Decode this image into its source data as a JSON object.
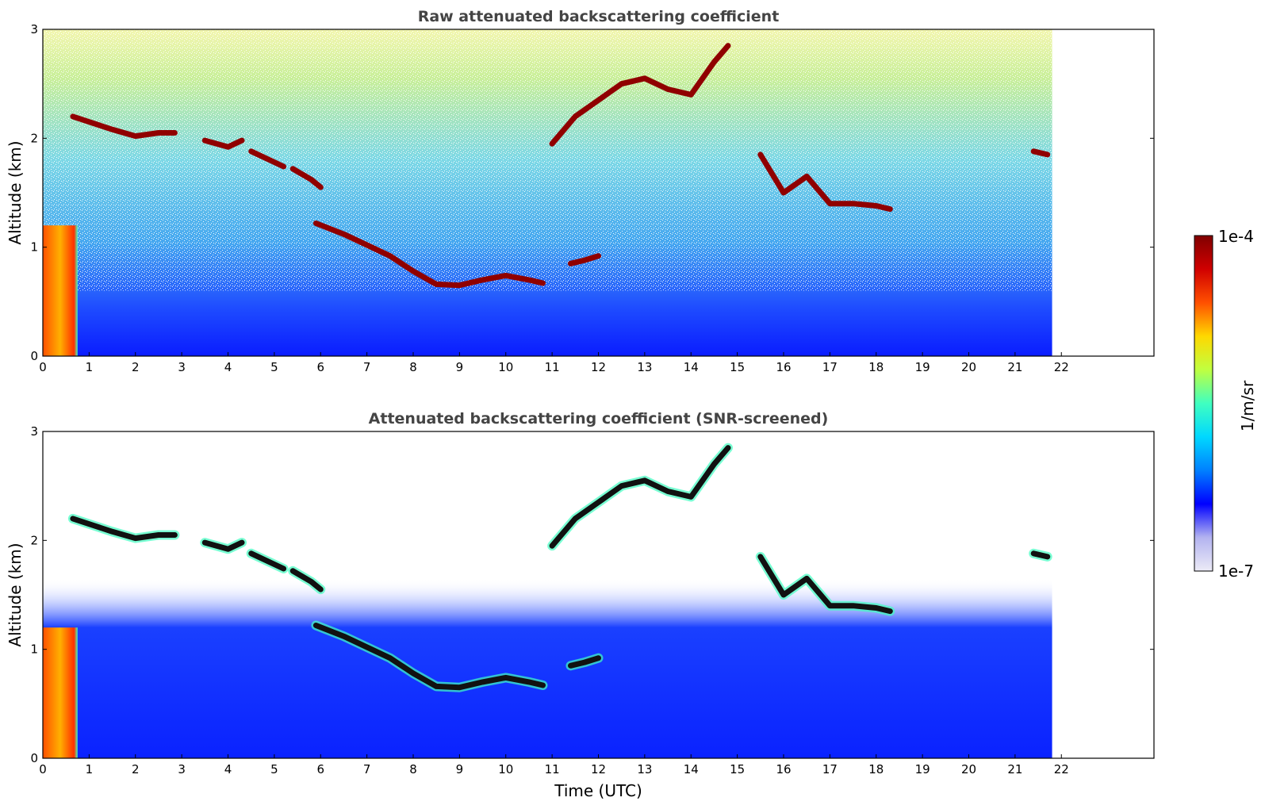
{
  "chart_data": [
    {
      "type": "heatmap",
      "title": "Raw attenuated backscattering coefficient",
      "xlabel": "",
      "ylabel": "Altitude (km)",
      "xlim": [
        0,
        24
      ],
      "ylim": [
        0,
        3
      ],
      "x_ticks": [
        0,
        1,
        2,
        3,
        4,
        5,
        6,
        7,
        8,
        9,
        10,
        11,
        12,
        13,
        14,
        15,
        16,
        17,
        18,
        19,
        20,
        21,
        22
      ],
      "y_ticks": [
        0,
        1,
        2,
        3
      ],
      "data_end_time": 21.8,
      "cloud_layers": [
        {
          "t": [
            0.65,
            1,
            1.5,
            2,
            2.5,
            2.85
          ],
          "alt": [
            2.2,
            2.15,
            2.08,
            2.02,
            2.05,
            2.05
          ]
        },
        {
          "t": [
            3.5,
            4,
            4.3
          ],
          "alt": [
            1.98,
            1.92,
            1.98
          ]
        },
        {
          "t": [
            4.5,
            5,
            5.2
          ],
          "alt": [
            1.88,
            1.78,
            1.74
          ]
        },
        {
          "t": [
            5.4,
            5.8,
            6.0
          ],
          "alt": [
            1.72,
            1.62,
            1.55
          ]
        },
        {
          "t": [
            5.9,
            6.5,
            7,
            7.5,
            8,
            8.5,
            9,
            9.5,
            10,
            10.5,
            10.8
          ],
          "alt": [
            1.22,
            1.12,
            1.02,
            0.92,
            0.78,
            0.66,
            0.65,
            0.7,
            0.74,
            0.7,
            0.67
          ]
        },
        {
          "t": [
            11,
            11.5,
            12,
            12.5,
            13,
            13.5,
            14,
            14.5,
            14.8
          ],
          "alt": [
            1.95,
            2.2,
            2.35,
            2.5,
            2.55,
            2.45,
            2.4,
            2.7,
            2.85
          ]
        },
        {
          "t": [
            15.5,
            16,
            16.5,
            17,
            17.5,
            18,
            18.3
          ],
          "alt": [
            1.85,
            1.5,
            1.65,
            1.4,
            1.4,
            1.38,
            1.35
          ]
        },
        {
          "t": [
            11.4,
            11.7,
            12
          ],
          "alt": [
            0.85,
            0.88,
            0.92
          ]
        },
        {
          "t": [
            21.4,
            21.7
          ],
          "alt": [
            1.88,
            1.85
          ]
        }
      ],
      "surface_aerosol": {
        "t_start": 0,
        "t_end": 0.75,
        "top_alt": 1.2
      }
    },
    {
      "type": "heatmap",
      "title": "Attenuated backscattering coefficient (SNR-screened)",
      "xlabel": "Time (UTC)",
      "ylabel": "Altitude (km)",
      "xlim": [
        0,
        24
      ],
      "ylim": [
        0,
        3
      ],
      "x_ticks": [
        0,
        1,
        2,
        3,
        4,
        5,
        6,
        7,
        8,
        9,
        10,
        11,
        12,
        13,
        14,
        15,
        16,
        17,
        18,
        19,
        20,
        21,
        22
      ],
      "y_ticks": [
        0,
        1,
        2,
        3
      ],
      "data_end_time": 21.8,
      "cloud_layers": [
        {
          "t": [
            0.65,
            1,
            1.5,
            2,
            2.5,
            2.85
          ],
          "alt": [
            2.2,
            2.15,
            2.08,
            2.02,
            2.05,
            2.05
          ]
        },
        {
          "t": [
            3.5,
            4,
            4.3
          ],
          "alt": [
            1.98,
            1.92,
            1.98
          ]
        },
        {
          "t": [
            4.5,
            5,
            5.2
          ],
          "alt": [
            1.88,
            1.78,
            1.74
          ]
        },
        {
          "t": [
            5.4,
            5.8,
            6.0
          ],
          "alt": [
            1.72,
            1.62,
            1.55
          ]
        },
        {
          "t": [
            5.9,
            6.5,
            7,
            7.5,
            8,
            8.5,
            9,
            9.5,
            10,
            10.5,
            10.8
          ],
          "alt": [
            1.22,
            1.12,
            1.02,
            0.92,
            0.78,
            0.66,
            0.65,
            0.7,
            0.74,
            0.7,
            0.67
          ]
        },
        {
          "t": [
            11,
            11.5,
            12,
            12.5,
            13,
            13.5,
            14,
            14.5,
            14.8
          ],
          "alt": [
            1.95,
            2.2,
            2.35,
            2.5,
            2.55,
            2.45,
            2.4,
            2.7,
            2.85
          ]
        },
        {
          "t": [
            15.5,
            16,
            16.5,
            17,
            17.5,
            18,
            18.3
          ],
          "alt": [
            1.85,
            1.5,
            1.65,
            1.4,
            1.4,
            1.38,
            1.35
          ]
        },
        {
          "t": [
            11.4,
            11.7,
            12
          ],
          "alt": [
            0.85,
            0.88,
            0.92
          ]
        },
        {
          "t": [
            21.4,
            21.7
          ],
          "alt": [
            1.88,
            1.85
          ]
        }
      ],
      "surface_aerosol": {
        "t_start": 0,
        "t_end": 0.75,
        "top_alt": 1.2
      }
    }
  ],
  "colorbar": {
    "label": "1/m/sr",
    "min_label": "1e-7",
    "max_label": "1e-4",
    "colormap": "jet",
    "stops": [
      "#ecebf6",
      "#b3b3f0",
      "#0000ff",
      "#0080ff",
      "#00d8ff",
      "#40ffc0",
      "#c0ff40",
      "#ffd800",
      "#ff5000",
      "#d00000",
      "#800000"
    ]
  },
  "colors": {
    "layer_raw": "#900000",
    "layer_screened": "#111111",
    "aerosol": "#ff8000"
  }
}
